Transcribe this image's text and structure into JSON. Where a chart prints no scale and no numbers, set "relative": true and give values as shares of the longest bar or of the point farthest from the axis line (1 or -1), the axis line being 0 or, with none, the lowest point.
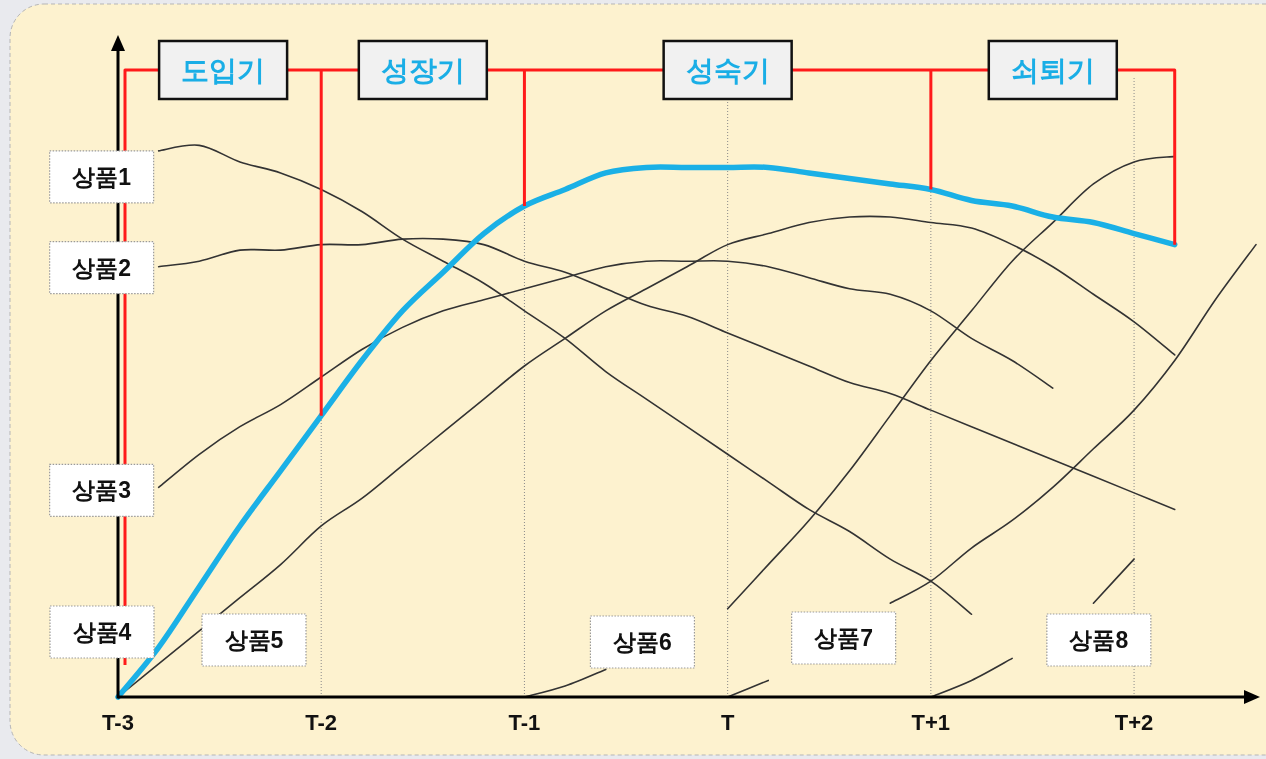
{
  "chart_data": {
    "type": "line",
    "relative": true,
    "grid": "x",
    "categories": [
      "T-3",
      null,
      null,
      null,
      null,
      "T-2",
      null,
      null,
      null,
      null,
      "T-1",
      null,
      null,
      null,
      null,
      "T",
      null,
      null,
      null,
      null,
      "T+1",
      null,
      null,
      null,
      null,
      "T+2",
      null,
      null,
      null
    ],
    "series": [
      {
        "name": "상품1",
        "color": "#333333",
        "values": [
          null,
          0.99,
          1.0,
          0.97,
          0.95,
          0.92,
          0.88,
          0.83,
          0.79,
          0.75,
          0.7,
          0.65,
          0.59,
          0.54,
          0.49,
          0.44,
          0.39,
          0.34,
          0.3,
          0.25,
          0.21,
          0.15,
          null,
          null,
          null,
          null,
          null,
          null,
          null
        ]
      },
      {
        "name": "상품2",
        "color": "#333333",
        "values": [
          null,
          0.78,
          0.79,
          0.81,
          0.81,
          0.82,
          0.82,
          0.83,
          0.83,
          0.82,
          0.79,
          0.77,
          0.74,
          0.71,
          0.69,
          0.66,
          0.63,
          0.6,
          0.57,
          0.55,
          0.52,
          0.49,
          0.46,
          0.43,
          0.4,
          0.37,
          0.34,
          null,
          null
        ]
      },
      {
        "name": "상품3",
        "color": "#333333",
        "values": [
          null,
          0.38,
          0.44,
          0.49,
          0.53,
          0.58,
          0.63,
          0.67,
          0.7,
          0.72,
          0.74,
          0.76,
          0.78,
          0.79,
          0.79,
          0.79,
          0.78,
          0.76,
          0.74,
          0.73,
          0.7,
          0.65,
          0.61,
          0.56,
          null,
          null,
          null,
          null,
          null
        ]
      },
      {
        "name": "상품4",
        "color": "#1ab0e6",
        "values": [
          0,
          0.09,
          0.2,
          0.31,
          0.41,
          0.51,
          0.61,
          0.7,
          0.77,
          0.84,
          0.89,
          0.92,
          0.95,
          0.96,
          0.96,
          0.96,
          0.96,
          0.95,
          0.94,
          0.93,
          0.92,
          0.9,
          0.89,
          0.87,
          0.86,
          0.84,
          0.82,
          null,
          null
        ]
      },
      {
        "name": "상품5",
        "color": "#333333",
        "values": [
          0,
          0.06,
          0.12,
          0.18,
          0.24,
          0.31,
          0.36,
          0.42,
          0.48,
          0.54,
          0.6,
          0.65,
          0.7,
          0.74,
          0.78,
          0.82,
          0.84,
          0.86,
          0.87,
          0.87,
          0.86,
          0.85,
          0.82,
          0.78,
          0.73,
          0.68,
          0.62,
          null,
          null
        ]
      },
      {
        "name": "상품6",
        "color": "#333333",
        "values": [
          null,
          null,
          null,
          null,
          null,
          null,
          null,
          null,
          null,
          null,
          0,
          0.02,
          0.05,
          null,
          null,
          0.16,
          0.24,
          0.32,
          0.41,
          0.51,
          0.61,
          0.7,
          0.79,
          0.86,
          0.93,
          0.97,
          0.98,
          null,
          null
        ]
      },
      {
        "name": "상품7",
        "color": "#333333",
        "values": [
          null,
          null,
          null,
          null,
          null,
          null,
          null,
          null,
          null,
          null,
          null,
          null,
          null,
          null,
          null,
          0,
          0.03,
          null,
          null,
          0.17,
          0.21,
          0.27,
          0.32,
          0.38,
          0.45,
          0.52,
          0.61,
          0.72,
          0.82
        ]
      },
      {
        "name": "상품8",
        "color": "#333333",
        "values": [
          null,
          null,
          null,
          null,
          null,
          null,
          null,
          null,
          null,
          null,
          null,
          null,
          null,
          null,
          null,
          null,
          null,
          null,
          null,
          null,
          0,
          0.03,
          0.07,
          null,
          0.17,
          0.25,
          null,
          null,
          null
        ]
      }
    ],
    "ref_lines": [
      {
        "axis": "x",
        "value": "T-2",
        "color": "#ff1a1a"
      },
      {
        "axis": "x",
        "value": "T-1",
        "color": "#ff1a1a"
      },
      {
        "axis": "x",
        "value": "T+1",
        "color": "#ff1a1a"
      }
    ],
    "annotations": [
      "도입기",
      "성장기",
      "성숙기",
      "쇠퇴기"
    ]
  }
}
